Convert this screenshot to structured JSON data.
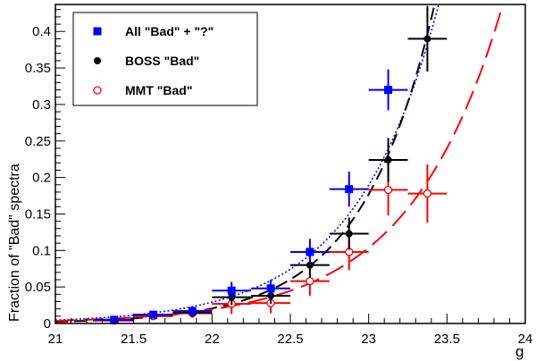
{
  "chart_data": {
    "type": "scatter",
    "title": "",
    "xlabel": "g",
    "ylabel": "Fraction of \"Bad\" spectra",
    "xlim": [
      21,
      24
    ],
    "ylim": [
      0,
      0.437
    ],
    "xticks": [
      21,
      21.5,
      22,
      22.5,
      23,
      23.5,
      24
    ],
    "xtick_labels": [
      "21",
      "21.5",
      "22",
      "22.5",
      "23",
      "23.5",
      "24"
    ],
    "yticks": [
      0,
      0.05,
      0.1,
      0.15,
      0.2,
      0.25,
      0.3,
      0.35,
      0.4
    ],
    "ytick_labels": [
      "0",
      "0.05",
      "0.1",
      "0.15",
      "0.2",
      "0.25",
      "0.3",
      "0.35",
      "0.4"
    ],
    "grid": false,
    "legend_position": "top-left",
    "bin_half_width": 0.125,
    "series": [
      {
        "name": "All \"Bad\" + \"?\"",
        "color": "#0000ff",
        "marker": "square",
        "line": "dotted",
        "fit": {
          "a": 0.0045,
          "b": 1.87
        },
        "points": [
          [
            21.375,
            0.005,
            0.003
          ],
          [
            21.625,
            0.012,
            0.005
          ],
          [
            21.875,
            0.017,
            0.006
          ],
          [
            22.125,
            0.045,
            0.012
          ],
          [
            22.375,
            0.048,
            0.012
          ],
          [
            22.625,
            0.098,
            0.018
          ],
          [
            22.875,
            0.184,
            0.024
          ],
          [
            23.125,
            0.32,
            0.028
          ]
        ]
      },
      {
        "name": "BOSS \"Bad\"",
        "color": "#000000",
        "marker": "circle",
        "line": "dashed",
        "fit": {
          "a": 0.0024,
          "b": 2.15
        },
        "points": [
          [
            21.375,
            0.005,
            0.003
          ],
          [
            21.625,
            0.012,
            0.005
          ],
          [
            21.875,
            0.015,
            0.006
          ],
          [
            22.125,
            0.036,
            0.011
          ],
          [
            22.375,
            0.038,
            0.011
          ],
          [
            22.625,
            0.08,
            0.017
          ],
          [
            22.875,
            0.123,
            0.022
          ],
          [
            23.125,
            0.224,
            0.03
          ],
          [
            23.375,
            0.39,
            0.045
          ]
        ]
      },
      {
        "name": "MMT \"Bad\"",
        "color": "#ff0000",
        "marker": "open-circle",
        "line": "long-dashed",
        "fit": {
          "a": 0.0036,
          "b": 1.68
        },
        "points": [
          [
            21.375,
            0.004,
            0.003
          ],
          [
            21.625,
            0.01,
            0.005
          ],
          [
            21.875,
            0.014,
            0.006
          ],
          [
            22.125,
            0.027,
            0.014
          ],
          [
            22.375,
            0.028,
            0.014
          ],
          [
            22.625,
            0.058,
            0.02
          ],
          [
            22.875,
            0.098,
            0.025
          ],
          [
            23.125,
            0.183,
            0.035
          ],
          [
            23.375,
            0.178,
            0.04
          ]
        ]
      }
    ]
  }
}
